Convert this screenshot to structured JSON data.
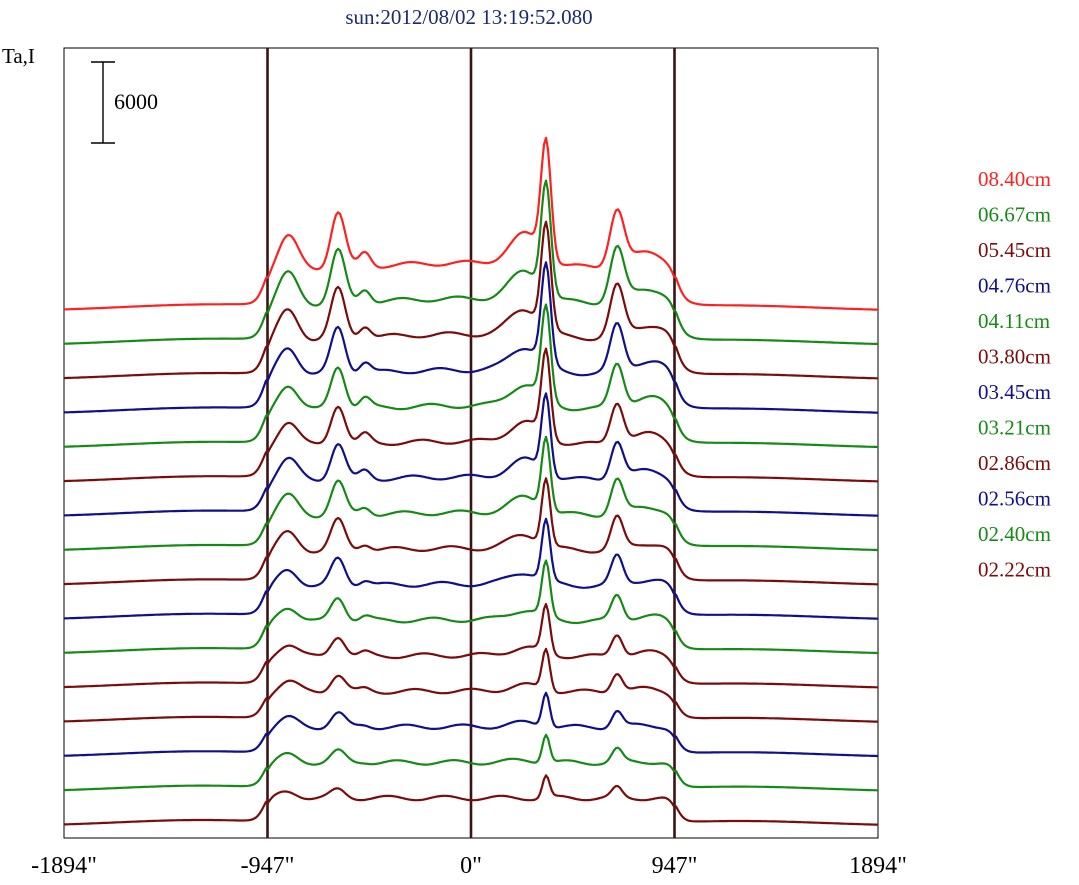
{
  "chart_data": {
    "type": "line",
    "title": "sun:2012/08/02 13:19:52.080",
    "ylabel": "Ta,I",
    "xlabel": "",
    "x_ticks": [
      "-1894\"",
      "-947\"",
      "0\"",
      "947\"",
      "1894\""
    ],
    "xlim": [
      -1894,
      1894
    ],
    "vertical_lines": [
      -947,
      0,
      947
    ],
    "scale_bar": {
      "label": "6000",
      "value": 6000
    },
    "series": [
      {
        "name": "08.40cm",
        "color": "#ff2020",
        "profile": "A"
      },
      {
        "name": "06.67cm",
        "color": "#168a16",
        "profile": "B"
      },
      {
        "name": "05.45cm",
        "color": "#7a0c0c",
        "profile": "C"
      },
      {
        "name": "04.76cm",
        "color": "#10108a",
        "profile": "D"
      },
      {
        "name": "04.11cm",
        "color": "#168a16",
        "profile": "E"
      },
      {
        "name": "03.80cm",
        "color": "#7a0c0c",
        "profile": "F"
      },
      {
        "name": "03.45cm",
        "color": "#10108a",
        "profile": "G"
      },
      {
        "name": "03.21cm",
        "color": "#168a16",
        "profile": "H"
      },
      {
        "name": "02.86cm",
        "color": "#7a0c0c",
        "profile": "I"
      },
      {
        "name": "02.56cm",
        "color": "#10108a",
        "profile": "J"
      },
      {
        "name": "02.40cm",
        "color": "#168a16",
        "profile": "K"
      },
      {
        "name": "02.22cm",
        "color": "#7a0c0c",
        "profile": "L"
      },
      {
        "name": "",
        "color": "#7a0c0c",
        "profile": "M"
      },
      {
        "name": "",
        "color": "#10108a",
        "profile": "N"
      },
      {
        "name": "",
        "color": "#168a16",
        "profile": "O"
      },
      {
        "name": "",
        "color": "#7a0c0c",
        "profile": "P"
      }
    ]
  }
}
